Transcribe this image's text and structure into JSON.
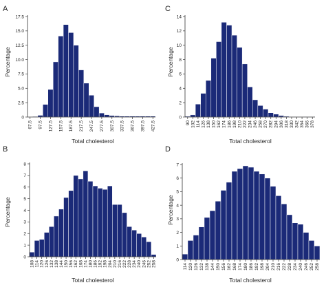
{
  "style": {
    "bar_color": "#1b2a78"
  },
  "chart_data": [
    {
      "panel": "A",
      "type": "bar",
      "xlabel": "Total cholesterol",
      "ylabel": "Percentage",
      "ylim": [
        0,
        17.5
      ],
      "yticks": [
        "0",
        "2.5",
        "5.0",
        "7.5",
        "10.0",
        "12.5",
        "15.0",
        "17.5"
      ],
      "xtick_labels": [
        "67.5",
        "97.5",
        "127.5",
        "157.5",
        "187.5",
        "217.5",
        "247.5",
        "277.5",
        "307.5",
        "337.5",
        "367.5",
        "397.5",
        "427.5"
      ],
      "xtick_every": 2,
      "values": [
        0,
        0.1,
        0.3,
        2.2,
        4.8,
        9.6,
        14.1,
        16.1,
        14.7,
        12.5,
        8.2,
        5.9,
        3.8,
        1.8,
        0.7,
        0.4,
        0.25,
        0.2,
        0.15,
        0.15,
        0.15,
        0.15,
        0.15,
        0.15,
        0.15
      ]
    },
    {
      "panel": "C",
      "type": "bar",
      "xlabel": "Total cholesterol",
      "ylabel": "Percentage",
      "ylim": [
        0,
        14
      ],
      "yticks": [
        "0",
        "2",
        "4",
        "6",
        "8",
        "10",
        "12",
        "14"
      ],
      "xtick_labels": [
        "90",
        "102",
        "114",
        "126",
        "138",
        "150",
        "162",
        "174",
        "186",
        "198",
        "210",
        "222",
        "234",
        "246",
        "258",
        "270",
        "282",
        "294",
        "306",
        "318",
        "330",
        "342",
        "354",
        "366",
        "378"
      ],
      "xtick_every": 1,
      "values": [
        0.1,
        0.3,
        1.8,
        3.3,
        5.1,
        8.2,
        10.5,
        13.2,
        12.8,
        11.4,
        9.7,
        7.4,
        4.2,
        2.4,
        1.6,
        1.1,
        0.6,
        0.4,
        0.2,
        0.1,
        0.05,
        0.05,
        0.05,
        0.05,
        0.05
      ]
    },
    {
      "panel": "B",
      "type": "bar",
      "xlabel": "Total cholesterol",
      "ylabel": "Percentage",
      "ylim": [
        0,
        8
      ],
      "yticks": [
        "0",
        "1",
        "2",
        "3",
        "4",
        "5",
        "6",
        "7",
        "8"
      ],
      "xtick_labels": [
        "108",
        "114",
        "120",
        "126",
        "132",
        "138",
        "144",
        "150",
        "156",
        "162",
        "168",
        "174",
        "180",
        "186",
        "192",
        "198",
        "204",
        "210",
        "216",
        "222",
        "228",
        "234",
        "240",
        "246",
        "252",
        "258"
      ],
      "xtick_every": 1,
      "values": [
        0.4,
        1.4,
        1.5,
        2.1,
        2.6,
        3.5,
        4.1,
        5.1,
        5.7,
        7.0,
        6.7,
        7.4,
        6.5,
        6.1,
        5.9,
        5.8,
        6.1,
        4.5,
        4.5,
        3.8,
        2.6,
        2.3,
        2.0,
        1.7,
        1.3,
        0.2
      ]
    },
    {
      "panel": "D",
      "type": "bar",
      "xlabel": "Total cholesterol",
      "ylabel": "Percentage",
      "ylim": [
        0,
        7
      ],
      "yticks": [
        "0",
        "1",
        "2",
        "3",
        "4",
        "5",
        "6",
        "7"
      ],
      "xtick_labels": [
        "114",
        "120",
        "126",
        "132",
        "138",
        "144",
        "150",
        "156",
        "162",
        "168",
        "174",
        "180",
        "186",
        "192",
        "198",
        "204",
        "210",
        "216",
        "222",
        "228",
        "234",
        "240",
        "246",
        "252",
        "258"
      ],
      "xtick_every": 1,
      "values": [
        0.4,
        1.4,
        1.8,
        2.4,
        3.1,
        3.6,
        4.3,
        5.1,
        5.7,
        6.5,
        6.7,
        6.9,
        6.8,
        6.5,
        6.3,
        6.0,
        5.4,
        4.7,
        4.1,
        3.3,
        2.7,
        2.6,
        2.0,
        1.4,
        1.0
      ]
    }
  ]
}
